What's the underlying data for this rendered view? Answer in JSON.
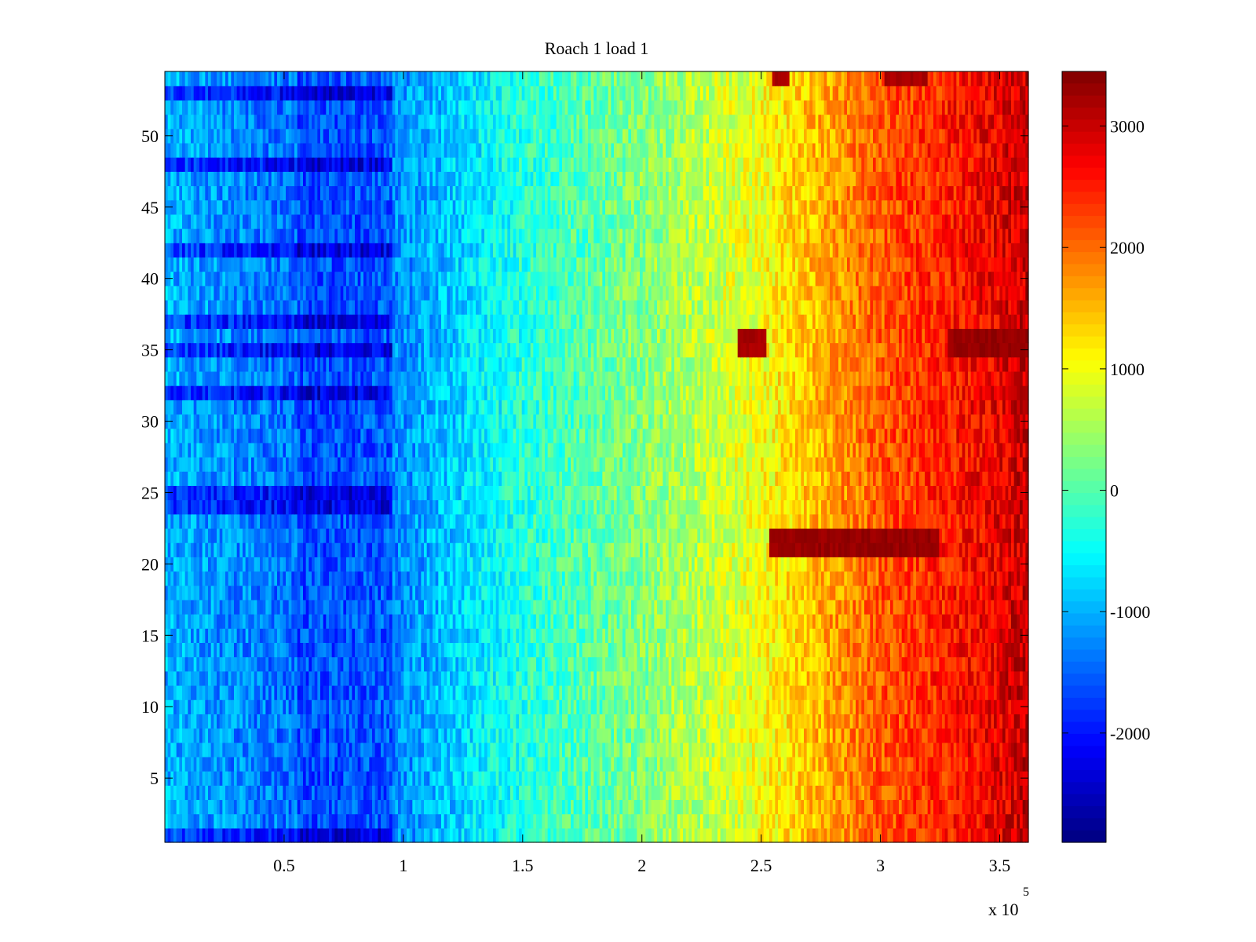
{
  "chart_data": {
    "type": "heatmap",
    "title": "Roach 1 load 1",
    "xlabel": "",
    "ylabel": "",
    "x_exponent_label": "x 10",
    "x_exponent_power": "5",
    "xlim": [
      0,
      3.62
    ],
    "ylim": [
      0.5,
      54.5
    ],
    "x_ticks": [
      0.5,
      1,
      1.5,
      2,
      2.5,
      3,
      3.5
    ],
    "x_tick_labels": [
      "0.5",
      "1",
      "1.5",
      "2",
      "2.5",
      "3",
      "3.5"
    ],
    "y_ticks": [
      5,
      10,
      15,
      20,
      25,
      30,
      35,
      40,
      45,
      50
    ],
    "y_tick_labels": [
      "5",
      "10",
      "15",
      "20",
      "25",
      "30",
      "35",
      "40",
      "45",
      "50"
    ],
    "rows": 54,
    "colorbar": {
      "clim": [
        -2900,
        3450
      ],
      "ticks": [
        -2000,
        -1000,
        0,
        1000,
        2000,
        3000
      ],
      "tick_labels": [
        "-2000",
        "-1000",
        "0",
        "1000",
        "2000",
        "3000"
      ],
      "colormap": "jet"
    },
    "value_trend": {
      "description": "values increase roughly left to right",
      "control_points_x": [
        0,
        0.5,
        0.95,
        1.5,
        2.0,
        2.5,
        3.0,
        3.5,
        3.62
      ],
      "control_points_value": [
        -1000,
        -1400,
        -1300,
        -300,
        300,
        1000,
        2100,
        2800,
        3000
      ]
    },
    "low_band_rows": [
      1,
      24,
      25,
      32,
      35,
      37,
      42,
      48,
      53
    ],
    "hot_spots": [
      {
        "rows": [
          21,
          22
        ],
        "x_range": [
          2.53,
          3.25
        ],
        "value": 3400
      },
      {
        "rows": [
          35,
          36
        ],
        "x_range": [
          3.28,
          3.62
        ],
        "value": 3400
      },
      {
        "rows": [
          35,
          36
        ],
        "x_range": [
          2.4,
          2.52
        ],
        "value": 3300
      },
      {
        "rows": [
          54
        ],
        "x_range": [
          2.55,
          2.62
        ],
        "value": 3300
      },
      {
        "rows": [
          54
        ],
        "x_range": [
          3.02,
          3.2
        ],
        "value": 3300
      }
    ]
  }
}
